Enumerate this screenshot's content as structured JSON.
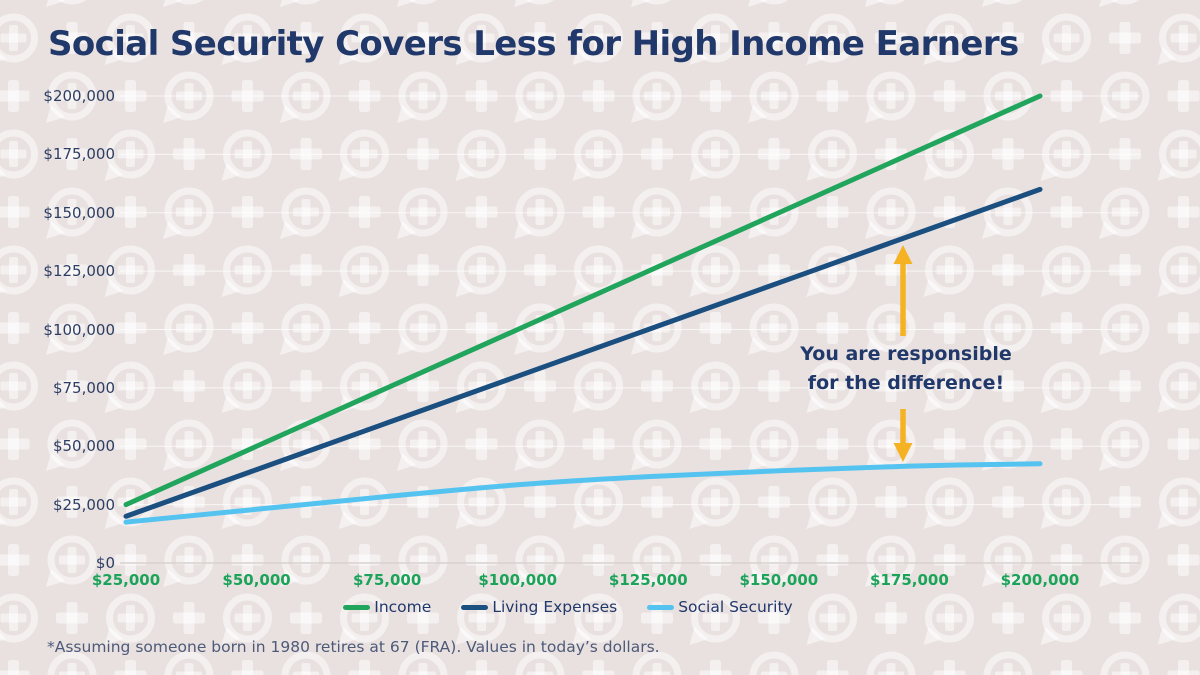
{
  "title": "Social Security Covers Less for High Income Earners",
  "annotation": {
    "line1": "You are responsible",
    "line2": "for the difference!"
  },
  "footnote": "*Assuming someone born in 1980 retires at 67 (FRA). Values in today’s dollars.",
  "colors": {
    "background": "#e9e1e0",
    "pattern": "rgba(255,255,255,0.5)",
    "title_navy": "#21386b",
    "axis_label_navy": "#2c3e63",
    "x_label_green": "#1ca35a",
    "income_green": "#21a55d",
    "expenses_navy": "#1a4f80",
    "social_blue": "#55c3f0",
    "arrow_yellow": "#f5b324",
    "zero_axis_line": "#d8d1d0",
    "gridline": "rgba(255,255,255,0.7)",
    "footnote_gray_navy": "#4d5a79"
  },
  "chart_data": {
    "type": "line",
    "x": [
      25000,
      50000,
      75000,
      100000,
      125000,
      150000,
      175000,
      200000
    ],
    "x_tick_labels": [
      "$25,000",
      "$50,000",
      "$75,000",
      "$100,000",
      "$125,000",
      "$150,000",
      "$175,000",
      "$200,000"
    ],
    "y_ticks": [
      0,
      25000,
      50000,
      75000,
      100000,
      125000,
      150000,
      175000,
      200000
    ],
    "y_tick_labels": [
      "$0",
      "$25,000",
      "$50,000",
      "$75,000",
      "$100,000",
      "$125,000",
      "$150,000",
      "$175,000",
      "$200,000"
    ],
    "ylim": [
      0,
      200000
    ],
    "grid": true,
    "legend_position": "bottom",
    "title": "Social Security Covers Less for High Income Earners",
    "xlabel": "",
    "ylabel": "",
    "series": [
      {
        "name": "Income",
        "color": "#21a55d",
        "smooth": false,
        "values": [
          25000,
          50000,
          75000,
          100000,
          125000,
          150000,
          175000,
          200000
        ]
      },
      {
        "name": "Living Expenses",
        "color": "#1a4f80",
        "smooth": false,
        "values": [
          20000,
          40000,
          60000,
          80000,
          100000,
          120000,
          140000,
          160000
        ]
      },
      {
        "name": "Social Security",
        "color": "#55c3f0",
        "smooth": true,
        "values": [
          17500,
          23000,
          28500,
          33500,
          37000,
          39500,
          41500,
          42500
        ]
      }
    ],
    "annotation_arrow": {
      "x_value": 173500,
      "from_series": "Social Security",
      "to_series": "Living Expenses"
    }
  }
}
